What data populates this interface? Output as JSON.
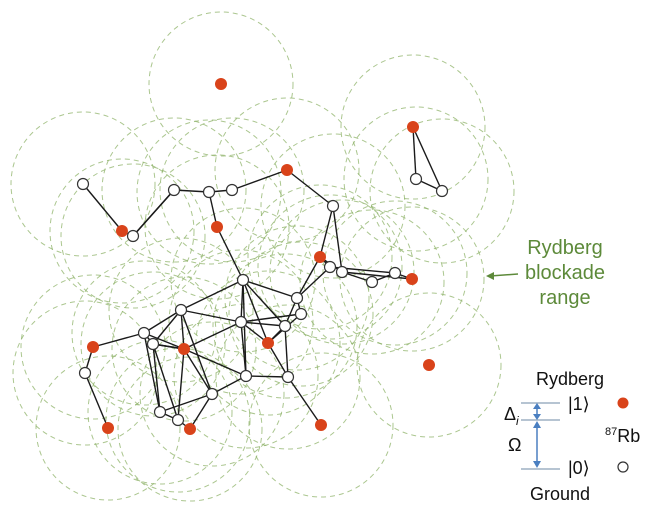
{
  "colors": {
    "rydberg": "#d9431a",
    "ground": "#ffffff",
    "edge": "#1a1a1a",
    "blockade": "#8fb36a",
    "label_green": "#5d8a3a",
    "arrow_blue": "#4a7fc1",
    "text": "#111111"
  },
  "annotation": {
    "line1": "Rydberg",
    "line2": "blockade",
    "line3": "range"
  },
  "legend": {
    "rydberg_label": "Rydberg",
    "ground_label": "Ground",
    "ket1": "|1⟩",
    "ket0": "|0⟩",
    "delta_symbol": "Δ",
    "delta_subscript": "i",
    "omega_symbol": "Ω",
    "species_mass": "87",
    "species": "Rb"
  }
}
